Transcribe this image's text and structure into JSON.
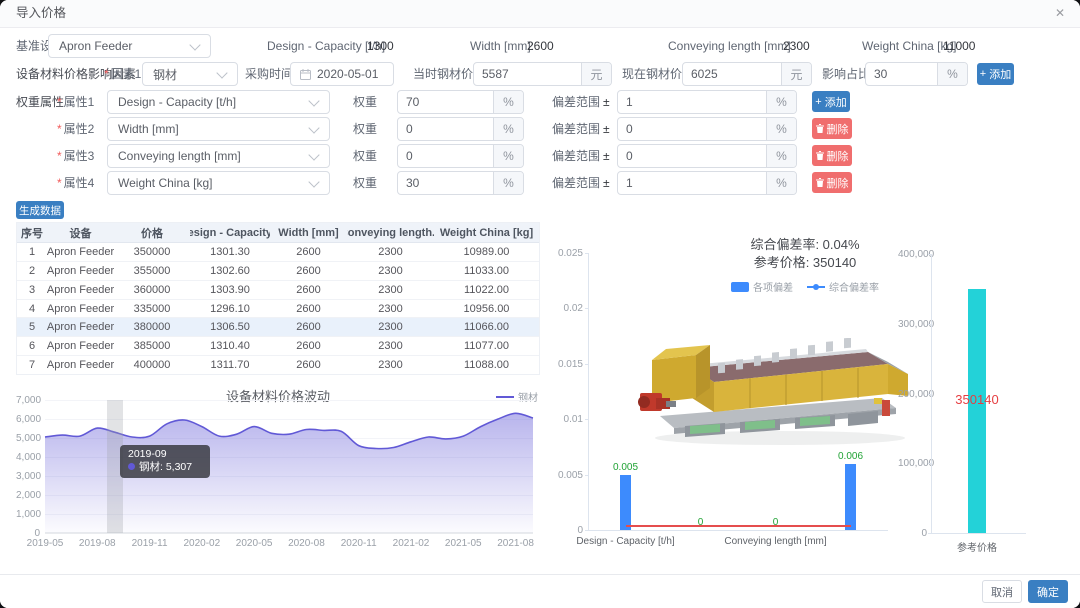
{
  "window": {
    "title": "导入价格",
    "close_icon": "✕"
  },
  "base_row": {
    "label": "基准设备",
    "device": "Apron Feeder",
    "specs": [
      {
        "label": "Design - Capacity [t/h]",
        "value": "1300"
      },
      {
        "label": "Width [mm]:",
        "value": "2600"
      },
      {
        "label": "Conveying length [mm]",
        "value": "2300"
      },
      {
        "label": "Weight China [kg]",
        "value": "11000"
      }
    ]
  },
  "factor_row": {
    "section_label": "设备材料价格影响因素",
    "factor_label": "因素1",
    "factor_value": "钢材",
    "purchase_time_label": "采购时间",
    "purchase_date": "2020-05-01",
    "price_then_label": "当时钢材价格",
    "price_then": "5587",
    "price_now_label": "现在钢材价格",
    "price_now": "6025",
    "impact_label": "影响占比",
    "impact": "30",
    "yuan_suffix": "元",
    "percent_suffix": "%",
    "plus_icon": "+",
    "add_button": "添加"
  },
  "weights": {
    "section_label": "权重属性",
    "weight_label": "权重",
    "deviation_label": "偏差范围",
    "plus_minus": "±",
    "percent_suffix": "%",
    "plus_icon": "+",
    "add_button": "添加",
    "delete_button": "删除",
    "rows": [
      {
        "attr_label": "属性1",
        "attribute": "Design - Capacity [t/h]",
        "weight": "70",
        "deviation": "1"
      },
      {
        "attr_label": "属性2",
        "attribute": "Width [mm]",
        "weight": "0",
        "deviation": "0"
      },
      {
        "attr_label": "属性3",
        "attribute": "Conveying length [mm]",
        "weight": "0",
        "deviation": "0"
      },
      {
        "attr_label": "属性4",
        "attribute": "Weight China [kg]",
        "weight": "30",
        "deviation": "1"
      }
    ]
  },
  "generate_button": "生成数据",
  "table": {
    "headers": [
      "序号",
      "设备",
      "价格",
      "Design - Capacity...",
      "Width [mm]",
      "Conveying length...",
      "Weight China [kg]"
    ],
    "selected_row": 5,
    "rows": [
      [
        "1",
        "Apron Feeder",
        "350000",
        "1301.30",
        "2600",
        "2300",
        "10989.00"
      ],
      [
        "2",
        "Apron Feeder",
        "355000",
        "1302.60",
        "2600",
        "2300",
        "11033.00"
      ],
      [
        "3",
        "Apron Feeder",
        "360000",
        "1303.90",
        "2600",
        "2300",
        "11022.00"
      ],
      [
        "4",
        "Apron Feeder",
        "335000",
        "1296.10",
        "2600",
        "2300",
        "10956.00"
      ],
      [
        "5",
        "Apron Feeder",
        "380000",
        "1306.50",
        "2600",
        "2300",
        "11066.00"
      ],
      [
        "6",
        "Apron Feeder",
        "385000",
        "1310.40",
        "2600",
        "2300",
        "11077.00"
      ],
      [
        "7",
        "Apron Feeder",
        "400000",
        "1311.70",
        "2600",
        "2300",
        "11088.00"
      ]
    ]
  },
  "summary": {
    "line1": "综合偏差率: 0.04%",
    "line2": "参考价格: 350140",
    "legend_bar": "各项偏差",
    "legend_line": "综合偏差率"
  },
  "footer": {
    "cancel": "取消",
    "confirm": "确定"
  },
  "colors": {
    "accent_blue": "#3a7fc2",
    "danger_red": "#f06e6e",
    "trend_line": "#6159d6",
    "bar_blue": "#3d8bfd",
    "bar_cyan": "#23d2d8",
    "label_green": "#21a335",
    "label_red": "#e63f42",
    "line_red": "#e54d4d"
  },
  "chart_data": [
    {
      "id": "material-price-trend",
      "type": "area",
      "title": "设备材料价格波动",
      "legend": [
        "钢材"
      ],
      "x": [
        "2019-05",
        "2019-06",
        "2019-07",
        "2019-08",
        "2019-09",
        "2019-10",
        "2019-11",
        "2019-12",
        "2020-01",
        "2020-02",
        "2020-03",
        "2020-04",
        "2020-05",
        "2020-06",
        "2020-07",
        "2020-08",
        "2020-09",
        "2020-10",
        "2020-11",
        "2020-12",
        "2021-01",
        "2021-02",
        "2021-03",
        "2021-04",
        "2021-05",
        "2021-06",
        "2021-07",
        "2021-08",
        "2021-09"
      ],
      "values": [
        5050,
        5150,
        5100,
        5520,
        5307,
        5050,
        5100,
        5750,
        5950,
        5600,
        5100,
        5200,
        5600,
        5250,
        5200,
        5450,
        5400,
        5350,
        4600,
        4450,
        4500,
        4800,
        5050,
        4950,
        5100,
        5600,
        6000,
        6300,
        6050
      ],
      "ylim": [
        0,
        7000
      ],
      "y_ticks": [
        "0",
        "1,000",
        "2,000",
        "3,000",
        "4,000",
        "5,000",
        "6,000",
        "7,000"
      ],
      "x_tick_every": 3,
      "line_color": "#6159d6",
      "tooltip": {
        "date": "2019-09",
        "series": "钢材",
        "value": "5,307",
        "text": "钢材: 5,307",
        "month_index": 4
      }
    },
    {
      "id": "deviation-by-attribute",
      "type": "bar",
      "categories": [
        "Design - Capacity [t/h]",
        "Width [mm]",
        "Conveying length [mm]",
        "Weight China [kg]"
      ],
      "values": [
        0.005,
        0,
        0,
        0.006
      ],
      "labels": [
        "0.005",
        "0",
        "0",
        "0.006"
      ],
      "shown_category_labels": [
        0,
        2
      ],
      "line_series": {
        "name": "综合偏差率",
        "value": 0.0004,
        "color": "#e54d4d"
      },
      "ylim": [
        0,
        0.025
      ],
      "y_ticks": [
        "0",
        "0.005",
        "0.01",
        "0.015",
        "0.02",
        "0.025"
      ],
      "bar_color": "#3d8bfd",
      "label_color": "#21a335"
    },
    {
      "id": "reference-price",
      "type": "bar",
      "categories": [
        "参考价格"
      ],
      "values": [
        350140
      ],
      "label": "350140",
      "ylim": [
        0,
        400000
      ],
      "y_ticks": [
        "0",
        "100,000",
        "200,000",
        "300,000",
        "400,000"
      ],
      "bar_color": "#23d2d8",
      "label_color": "#e63f42"
    }
  ]
}
